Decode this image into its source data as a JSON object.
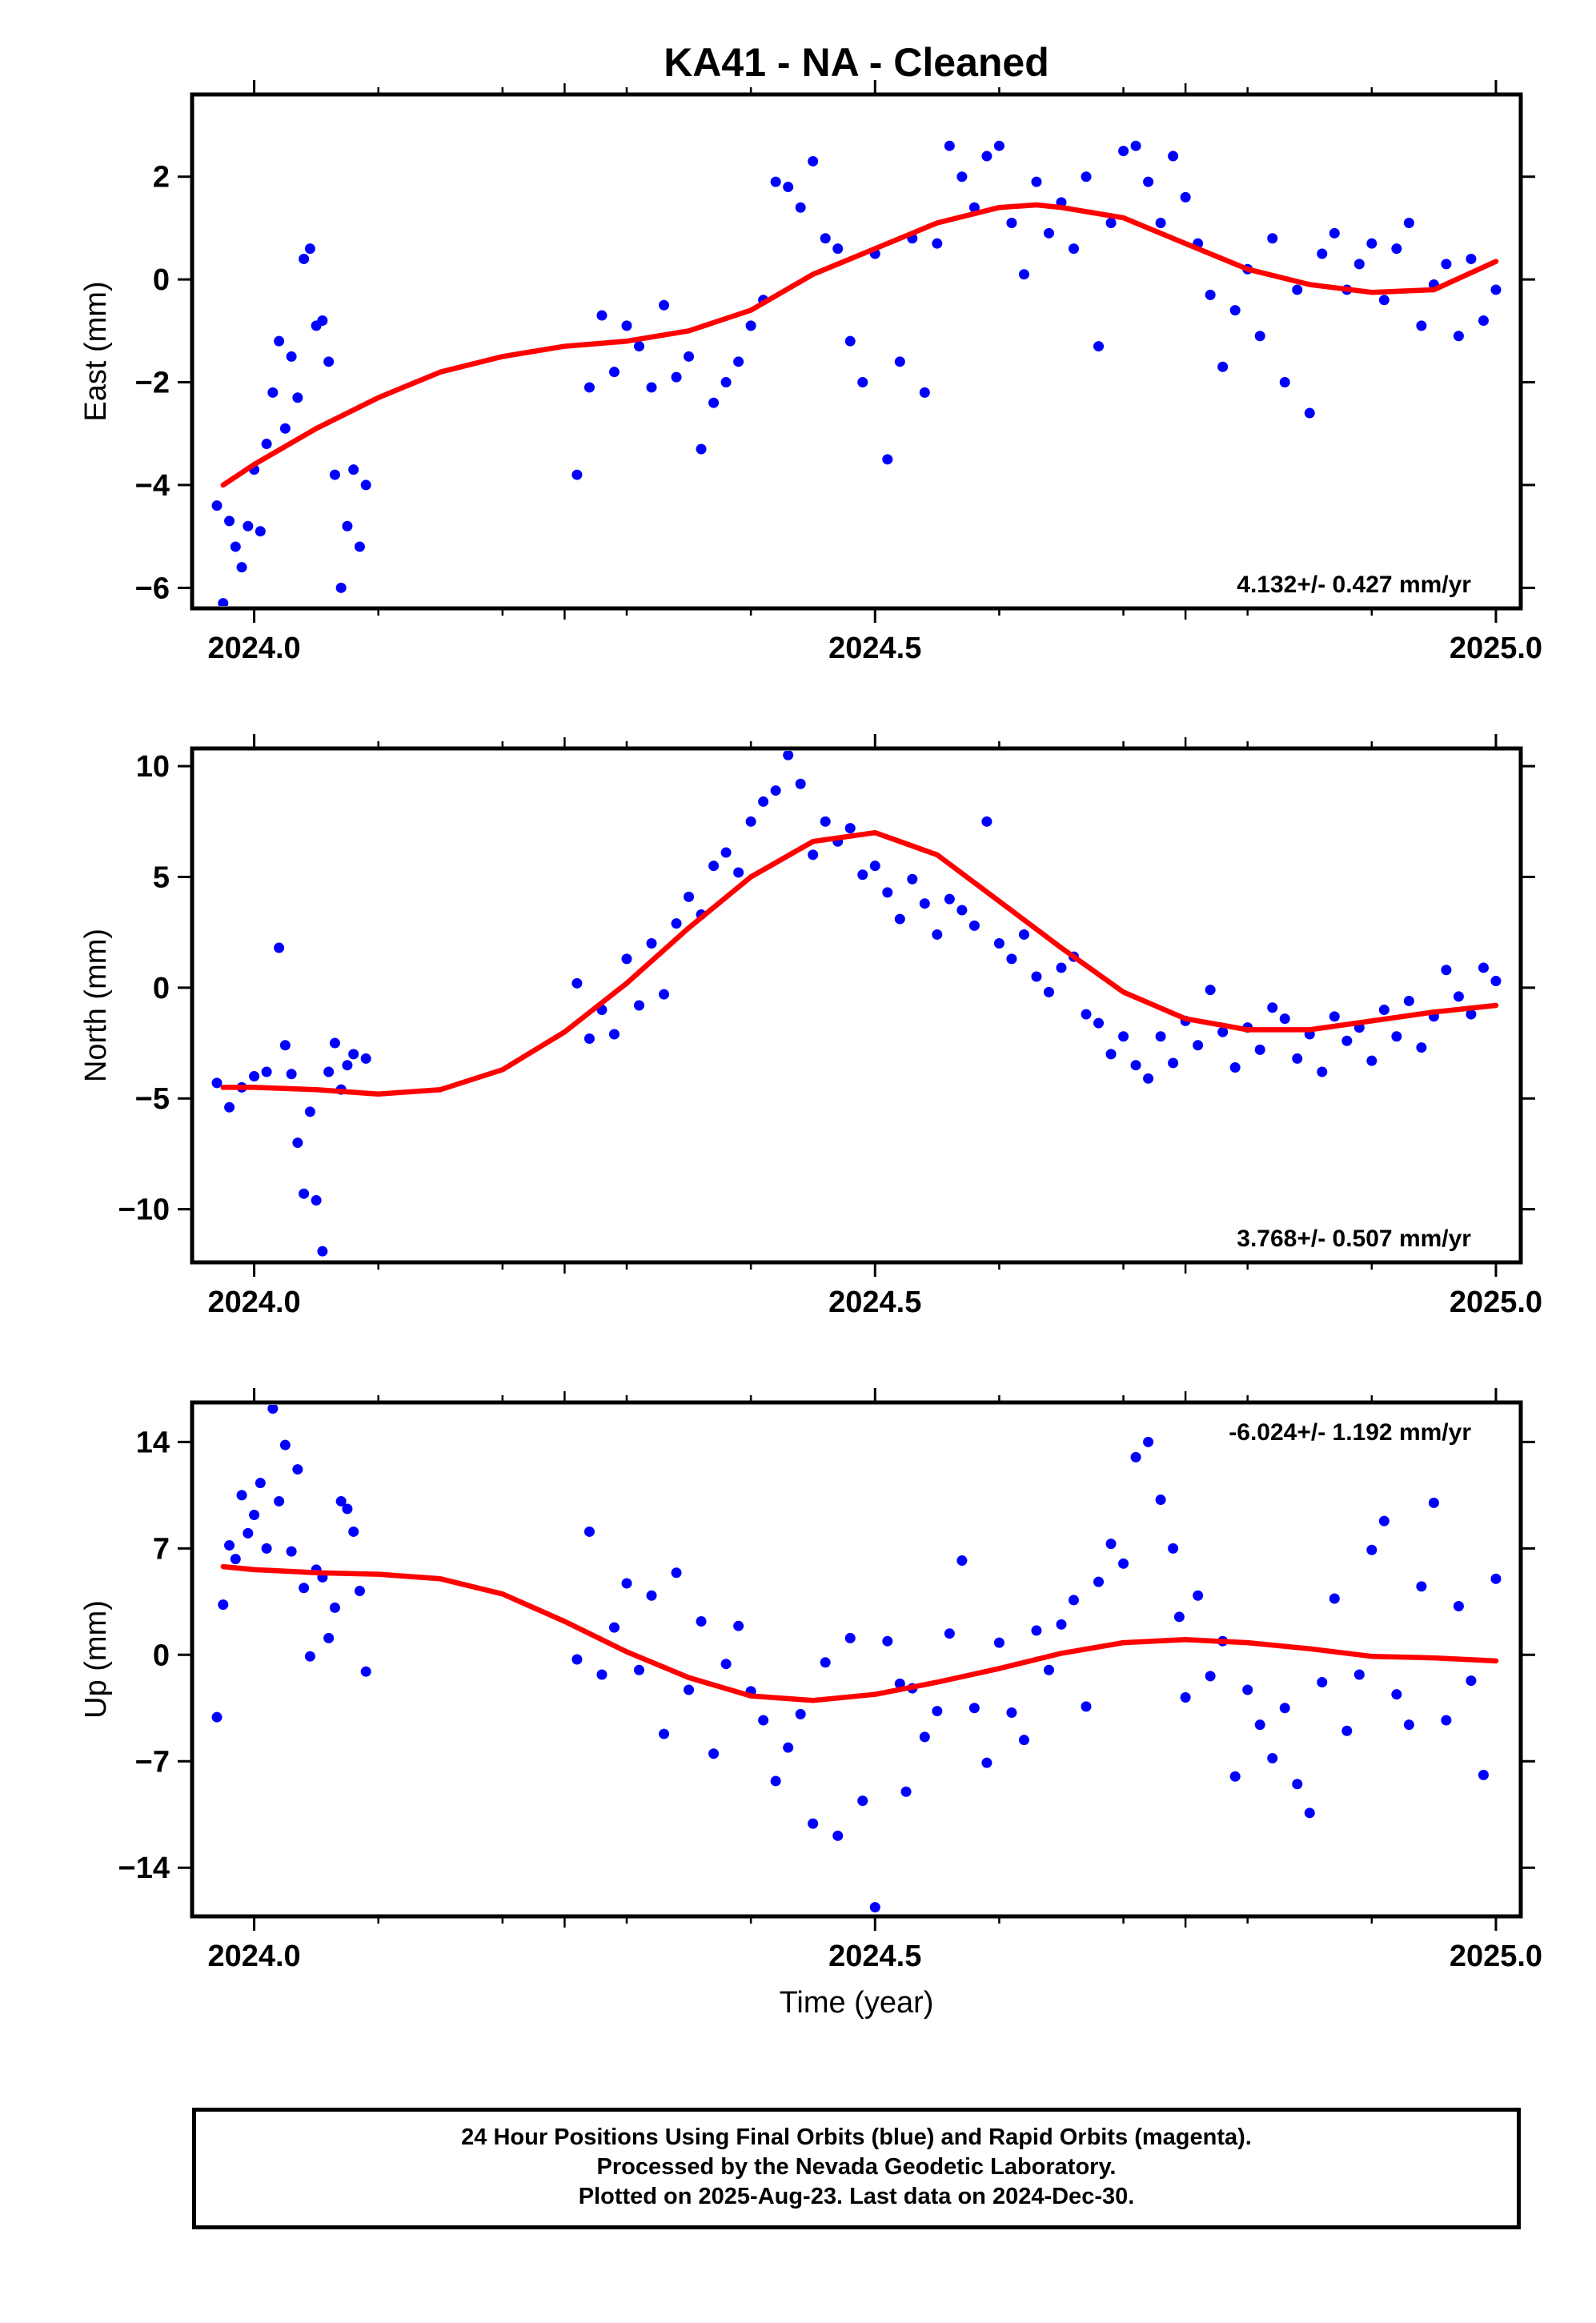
{
  "title": "KA41  - NA - Cleaned",
  "xlabel": "Time (year)",
  "colors": {
    "data": "#0000ff",
    "fit": "#ff0000",
    "frame": "#000000"
  },
  "footer": {
    "line1": "24 Hour Positions Using Final Orbits (blue) and Rapid Orbits (magenta).",
    "line2": "Processed by the Nevada Geodetic Laboratory.",
    "line3": "Plotted on 2025-Aug-23. Last data on 2024-Dec-30."
  },
  "chart_data": [
    {
      "type": "scatter",
      "ylabel": "East (mm)",
      "rate_label": "4.132+/- 0.427 mm/yr",
      "rate_position": "bottom-right",
      "xlim": [
        2023.95,
        2025.02
      ],
      "ylim": [
        -6.4,
        3.6
      ],
      "xticks": [
        2024.0,
        2024.5,
        2025.0
      ],
      "xtick_labels": [
        "2024.0",
        "2024.5",
        "2025.0"
      ],
      "yticks": [
        -6,
        -4,
        -2,
        0,
        2
      ],
      "ytick_labels": [
        "−6",
        "−4",
        "−2",
        "0",
        "2"
      ],
      "series": [
        {
          "kind": "points",
          "x": [
            2023.97,
            2023.975,
            2023.98,
            2023.985,
            2023.99,
            2023.995,
            2024.0,
            2024.005,
            2024.01,
            2024.015,
            2024.02,
            2024.025,
            2024.03,
            2024.035,
            2024.04,
            2024.045,
            2024.05,
            2024.055,
            2024.06,
            2024.065,
            2024.07,
            2024.075,
            2024.08,
            2024.085,
            2024.09,
            2024.26,
            2024.27,
            2024.28,
            2024.29,
            2024.3,
            2024.31,
            2024.32,
            2024.33,
            2024.34,
            2024.35,
            2024.36,
            2024.37,
            2024.38,
            2024.39,
            2024.4,
            2024.41,
            2024.42,
            2024.43,
            2024.44,
            2024.45,
            2024.46,
            2024.47,
            2024.48,
            2024.49,
            2024.5,
            2024.51,
            2024.52,
            2024.53,
            2024.54,
            2024.55,
            2024.56,
            2024.57,
            2024.58,
            2024.59,
            2024.6,
            2024.61,
            2024.62,
            2024.63,
            2024.64,
            2024.65,
            2024.66,
            2024.67,
            2024.68,
            2024.69,
            2024.7,
            2024.71,
            2024.72,
            2024.73,
            2024.74,
            2024.75,
            2024.76,
            2024.77,
            2024.78,
            2024.79,
            2024.8,
            2024.81,
            2024.82,
            2024.83,
            2024.84,
            2024.85,
            2024.86,
            2024.87,
            2024.88,
            2024.89,
            2024.9,
            2024.91,
            2024.92,
            2024.93,
            2024.94,
            2024.95,
            2024.96,
            2024.97,
            2024.98,
            2024.99,
            2025.0
          ],
          "y": [
            -4.4,
            -6.3,
            -4.7,
            -5.2,
            -5.6,
            -4.8,
            -3.7,
            -4.9,
            -3.2,
            -2.2,
            -1.2,
            -2.9,
            -1.5,
            -2.3,
            0.4,
            0.6,
            -0.9,
            -0.8,
            -1.6,
            -3.8,
            -6.0,
            -4.8,
            -3.7,
            -5.2,
            -4.0,
            -3.8,
            -2.1,
            -0.7,
            -1.8,
            -0.9,
            -1.3,
            -2.1,
            -0.5,
            -1.9,
            -1.5,
            -3.3,
            -2.4,
            -2.0,
            -1.6,
            -0.9,
            -0.4,
            1.9,
            1.8,
            1.4,
            2.3,
            0.8,
            0.6,
            -1.2,
            -2.0,
            0.5,
            -3.5,
            -1.6,
            0.8,
            -2.2,
            0.7,
            2.6,
            2.0,
            1.4,
            2.4,
            2.6,
            1.1,
            0.1,
            1.9,
            0.9,
            1.5,
            0.6,
            2.0,
            -1.3,
            1.1,
            2.5,
            2.6,
            1.9,
            1.1,
            2.4,
            1.6,
            0.7,
            -0.3,
            -1.7,
            -0.6,
            0.2,
            -1.1,
            0.8,
            -2.0,
            -0.2,
            -2.6,
            0.5,
            0.9,
            -0.2,
            0.3,
            0.7,
            -0.4,
            0.6,
            1.1,
            -0.9,
            -0.1,
            0.3,
            -1.1,
            0.4,
            -0.8,
            -0.2
          ]
        },
        {
          "kind": "fit",
          "x": [
            2023.975,
            2024.0,
            2024.05,
            2024.1,
            2024.15,
            2024.2,
            2024.25,
            2024.3,
            2024.35,
            2024.4,
            2024.45,
            2024.5,
            2024.55,
            2024.6,
            2024.63,
            2024.65,
            2024.7,
            2024.75,
            2024.8,
            2024.85,
            2024.9,
            2024.95,
            2025.0
          ],
          "y": [
            -4.0,
            -3.6,
            -2.9,
            -2.3,
            -1.8,
            -1.5,
            -1.3,
            -1.2,
            -1.0,
            -0.6,
            0.1,
            0.6,
            1.1,
            1.4,
            1.45,
            1.4,
            1.2,
            0.7,
            0.2,
            -0.1,
            -0.25,
            -0.2,
            0.35
          ]
        }
      ]
    },
    {
      "type": "scatter",
      "ylabel": "North (mm)",
      "rate_label": "3.768+/- 0.507 mm/yr",
      "rate_position": "bottom-right",
      "xlim": [
        2023.95,
        2025.02
      ],
      "ylim": [
        -12.4,
        10.8
      ],
      "xticks": [
        2024.0,
        2024.5,
        2025.0
      ],
      "xtick_labels": [
        "2024.0",
        "2024.5",
        "2025.0"
      ],
      "yticks": [
        -10,
        -5,
        0,
        5,
        10
      ],
      "ytick_labels": [
        "−10",
        "−5",
        "0",
        "5",
        "10"
      ],
      "series": [
        {
          "kind": "points",
          "x": [
            2023.97,
            2023.98,
            2023.99,
            2024.0,
            2024.01,
            2024.02,
            2024.025,
            2024.03,
            2024.035,
            2024.04,
            2024.045,
            2024.05,
            2024.055,
            2024.06,
            2024.065,
            2024.07,
            2024.075,
            2024.08,
            2024.09,
            2024.26,
            2024.27,
            2024.28,
            2024.29,
            2024.3,
            2024.31,
            2024.32,
            2024.33,
            2024.34,
            2024.35,
            2024.36,
            2024.37,
            2024.38,
            2024.39,
            2024.4,
            2024.41,
            2024.42,
            2024.43,
            2024.44,
            2024.45,
            2024.46,
            2024.47,
            2024.48,
            2024.49,
            2024.5,
            2024.51,
            2024.52,
            2024.53,
            2024.54,
            2024.55,
            2024.56,
            2024.57,
            2024.58,
            2024.59,
            2024.6,
            2024.61,
            2024.62,
            2024.63,
            2024.64,
            2024.65,
            2024.66,
            2024.67,
            2024.68,
            2024.69,
            2024.7,
            2024.71,
            2024.72,
            2024.73,
            2024.74,
            2024.75,
            2024.76,
            2024.77,
            2024.78,
            2024.79,
            2024.8,
            2024.81,
            2024.82,
            2024.83,
            2024.84,
            2024.85,
            2024.86,
            2024.87,
            2024.88,
            2024.89,
            2024.9,
            2024.91,
            2024.92,
            2024.93,
            2024.94,
            2024.95,
            2024.96,
            2024.97,
            2024.98,
            2024.99,
            2025.0
          ],
          "y": [
            -4.3,
            -5.4,
            -4.5,
            -4.0,
            -3.8,
            1.8,
            -2.6,
            -3.9,
            -7.0,
            -9.3,
            -5.6,
            -9.6,
            -11.9,
            -3.8,
            -2.5,
            -4.6,
            -3.5,
            -3.0,
            -3.2,
            0.2,
            -2.3,
            -1.0,
            -2.1,
            1.3,
            -0.8,
            2.0,
            -0.3,
            2.9,
            4.1,
            3.3,
            5.5,
            6.1,
            5.2,
            7.5,
            8.4,
            8.9,
            10.5,
            9.2,
            6.0,
            7.5,
            6.6,
            7.2,
            5.1,
            5.5,
            4.3,
            3.1,
            4.9,
            3.8,
            2.4,
            4.0,
            3.5,
            2.8,
            7.5,
            2.0,
            1.3,
            2.4,
            0.5,
            -0.2,
            0.9,
            1.4,
            -1.2,
            -1.6,
            -3.0,
            -2.2,
            -3.5,
            -4.1,
            -2.2,
            -3.4,
            -1.5,
            -2.6,
            -0.1,
            -2.0,
            -3.6,
            -1.8,
            -2.8,
            -0.9,
            -1.4,
            -3.2,
            -2.1,
            -3.8,
            -1.3,
            -2.4,
            -1.8,
            -3.3,
            -1.0,
            -2.2,
            -0.6,
            -2.7,
            -1.3,
            0.8,
            -0.4,
            -1.2,
            0.9,
            0.3
          ]
        },
        {
          "kind": "fit",
          "x": [
            2023.975,
            2024.0,
            2024.05,
            2024.1,
            2024.15,
            2024.2,
            2024.25,
            2024.3,
            2024.35,
            2024.4,
            2024.45,
            2024.5,
            2024.55,
            2024.6,
            2024.65,
            2024.7,
            2024.75,
            2024.8,
            2024.85,
            2024.9,
            2024.95,
            2025.0
          ],
          "y": [
            -4.5,
            -4.5,
            -4.6,
            -4.8,
            -4.6,
            -3.7,
            -2.0,
            0.2,
            2.7,
            5.0,
            6.6,
            7.0,
            6.0,
            3.9,
            1.8,
            -0.2,
            -1.4,
            -1.9,
            -1.9,
            -1.5,
            -1.1,
            -0.8
          ]
        }
      ]
    },
    {
      "type": "scatter",
      "ylabel": "Up (mm)",
      "rate_label": "-6.024+/- 1.192 mm/yr",
      "rate_position": "top-right",
      "xlim": [
        2023.95,
        2025.02
      ],
      "ylim": [
        -17.2,
        16.6
      ],
      "xticks": [
        2024.0,
        2024.5,
        2025.0
      ],
      "xtick_labels": [
        "2024.0",
        "2024.5",
        "2025.0"
      ],
      "yticks": [
        -14,
        -7,
        0,
        7,
        14
      ],
      "ytick_labels": [
        "−14",
        "−7",
        "0",
        "7",
        "14"
      ],
      "series": [
        {
          "kind": "points",
          "x": [
            2023.97,
            2023.975,
            2023.98,
            2023.985,
            2023.99,
            2023.995,
            2024.0,
            2024.005,
            2024.01,
            2024.015,
            2024.02,
            2024.025,
            2024.03,
            2024.035,
            2024.04,
            2024.045,
            2024.05,
            2024.055,
            2024.06,
            2024.065,
            2024.07,
            2024.075,
            2024.08,
            2024.085,
            2024.09,
            2024.26,
            2024.27,
            2024.28,
            2024.29,
            2024.3,
            2024.31,
            2024.32,
            2024.33,
            2024.34,
            2024.35,
            2024.36,
            2024.37,
            2024.38,
            2024.39,
            2024.4,
            2024.41,
            2024.42,
            2024.43,
            2024.44,
            2024.45,
            2024.46,
            2024.47,
            2024.48,
            2024.49,
            2024.5,
            2024.51,
            2024.52,
            2024.525,
            2024.53,
            2024.54,
            2024.55,
            2024.56,
            2024.57,
            2024.58,
            2024.59,
            2024.6,
            2024.61,
            2024.62,
            2024.63,
            2024.64,
            2024.65,
            2024.66,
            2024.67,
            2024.68,
            2024.69,
            2024.7,
            2024.71,
            2024.72,
            2024.73,
            2024.74,
            2024.745,
            2024.75,
            2024.76,
            2024.77,
            2024.78,
            2024.79,
            2024.8,
            2024.81,
            2024.82,
            2024.83,
            2024.84,
            2024.85,
            2024.86,
            2024.87,
            2024.88,
            2024.89,
            2024.9,
            2024.91,
            2024.92,
            2024.93,
            2024.94,
            2024.95,
            2024.96,
            2024.97,
            2024.98,
            2024.99,
            2025.0
          ],
          "y": [
            -4.1,
            3.3,
            7.2,
            6.3,
            10.5,
            8.0,
            9.2,
            11.3,
            7.0,
            16.2,
            10.1,
            13.8,
            6.8,
            12.2,
            4.4,
            -0.1,
            5.6,
            5.1,
            1.1,
            3.1,
            10.1,
            9.6,
            8.1,
            4.2,
            -1.1,
            -0.3,
            8.1,
            -1.3,
            1.8,
            4.7,
            -1.0,
            3.9,
            -5.2,
            5.4,
            -2.3,
            2.2,
            -6.5,
            -0.6,
            1.9,
            -2.4,
            -4.3,
            -8.3,
            -6.1,
            -3.9,
            -11.1,
            -0.5,
            -11.9,
            1.1,
            -9.6,
            -16.6,
            0.9,
            -1.9,
            -9.0,
            -2.2,
            -5.4,
            -3.7,
            1.4,
            6.2,
            -3.5,
            -7.1,
            0.8,
            -3.8,
            -5.6,
            1.6,
            -1.0,
            2.0,
            3.6,
            -3.4,
            4.8,
            7.3,
            6.0,
            13.0,
            14.0,
            10.2,
            7.0,
            2.5,
            -2.8,
            3.9,
            -1.4,
            0.9,
            -8.0,
            -2.3,
            -4.6,
            -6.8,
            -3.5,
            -8.5,
            -10.4,
            -1.8,
            3.7,
            -5.0,
            -1.3,
            6.9,
            8.8,
            -2.6,
            -4.6,
            4.5,
            10.0,
            -4.3,
            3.2,
            -1.7,
            -7.9,
            5.0
          ]
        },
        {
          "kind": "fit",
          "x": [
            2023.975,
            2024.0,
            2024.05,
            2024.1,
            2024.15,
            2024.2,
            2024.25,
            2024.3,
            2024.35,
            2024.4,
            2024.45,
            2024.5,
            2024.55,
            2024.6,
            2024.65,
            2024.7,
            2024.75,
            2024.8,
            2024.85,
            2024.9,
            2024.95,
            2025.0
          ],
          "y": [
            5.8,
            5.6,
            5.4,
            5.3,
            5.0,
            4.0,
            2.2,
            0.2,
            -1.5,
            -2.7,
            -3.0,
            -2.6,
            -1.8,
            -0.9,
            0.1,
            0.8,
            1.0,
            0.8,
            0.4,
            -0.1,
            -0.2,
            -0.4
          ]
        }
      ]
    }
  ]
}
